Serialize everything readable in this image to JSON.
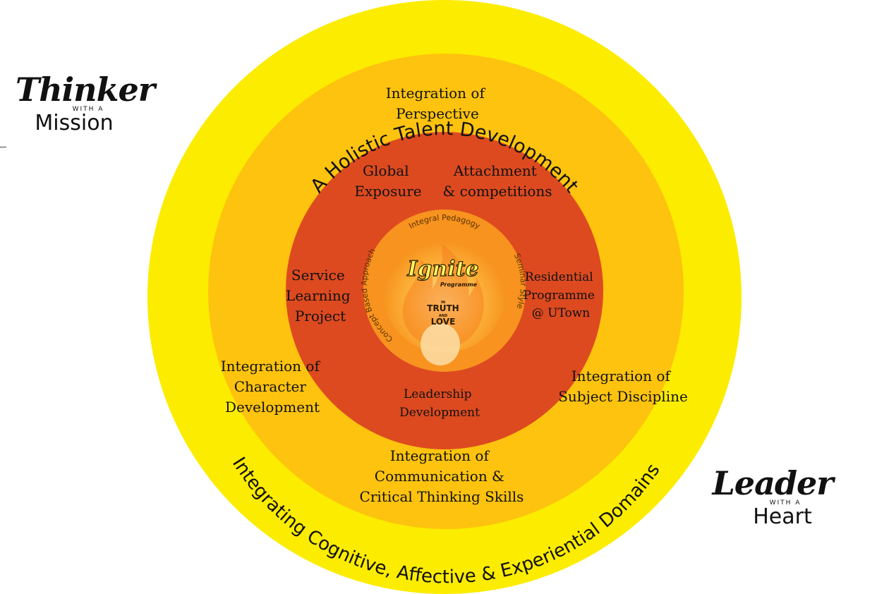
{
  "outer_ring": {
    "top_arc": "A Holistic Talent Development",
    "bottom_arc": "Integrating Cognitive, Affective & Experiential Domains"
  },
  "middle_ring": {
    "top": [
      "Integration of",
      "Perspective"
    ],
    "left": [
      "Integration of",
      "Character",
      "Development"
    ],
    "right": [
      "Integration of",
      "Subject Discipline"
    ],
    "bottom": [
      "Integration of",
      "Communication &",
      "Critical Thinking Skills"
    ]
  },
  "inner_ring": {
    "global": [
      "Global",
      "Exposure"
    ],
    "attachment": [
      "Attachment",
      "& competitions"
    ],
    "service": [
      "Service",
      "Learning",
      "Project"
    ],
    "residential": [
      "Residential",
      "Programme",
      "@ UTown"
    ],
    "leadership": [
      "Leadership",
      "Development"
    ]
  },
  "core": {
    "arc_top": "Integral Pedagogy",
    "arc_left": "Concept Based Approach",
    "arc_right": "Seminar Style",
    "logo": "Ignite",
    "logo_sub": "Programme",
    "motto_in": "IN",
    "motto_truth": "TRUTH",
    "motto_and": "AND",
    "motto_love": "LOVE"
  },
  "brands": {
    "thinker": {
      "script": "Thinker",
      "small": "WITH A",
      "word": "Mission"
    },
    "leader": {
      "script": "Leader",
      "small": "WITH A",
      "word": "Heart"
    }
  },
  "colors": {
    "outer": "#fcec00",
    "middle": "#fdc30e",
    "inner": "#dd4a20",
    "core_ring": "#f7931e",
    "core_center": "#fcb23a"
  }
}
